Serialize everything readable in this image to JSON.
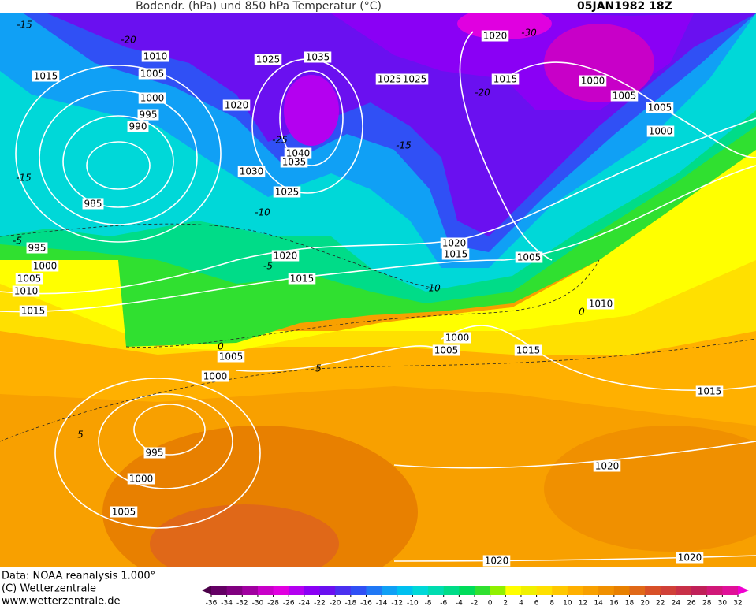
{
  "header": {
    "title": "Bodendr. (hPa) und 850 hPa Temperatur (°C)",
    "date": "05JAN1982 18Z"
  },
  "isobar_labels": [
    1010,
    1005,
    1015,
    1000,
    995,
    990,
    1025,
    1035,
    1020,
    1025,
    1025,
    1020,
    1015,
    1000,
    1005,
    1005,
    1000,
    1040,
    1035,
    1030,
    1025,
    985,
    995,
    1000,
    1005,
    1010,
    1015,
    1020,
    1015,
    1020,
    1015,
    1005,
    1010,
    1000,
    1005,
    1015,
    1005,
    1000,
    1015,
    995,
    1000,
    1005,
    1020,
    1020,
    1020
  ],
  "temperature_labels": [
    -15,
    -20,
    -30,
    -20,
    -25,
    -15,
    -10,
    -15,
    -5,
    -5,
    -10,
    0,
    0,
    5,
    5
  ],
  "footer": [
    "Data: NOAA reanalysis 1.000°",
    "(C) Wetterzentrale",
    "www.wetterzentrale.de"
  ],
  "legend": {
    "ticks": [
      -36,
      -34,
      -32,
      -30,
      -28,
      -26,
      -24,
      -22,
      -20,
      -18,
      -16,
      -14,
      -12,
      -10,
      -8,
      -6,
      -4,
      -2,
      0,
      2,
      4,
      6,
      8,
      10,
      12,
      14,
      16,
      18,
      20,
      22,
      24,
      26,
      28,
      30,
      32
    ],
    "colors": [
      "#4b0049",
      "#640064",
      "#80007f",
      "#a000a0",
      "#c800c8",
      "#e000e0",
      "#b400f0",
      "#8a00f5",
      "#6a10f0",
      "#4a30f0",
      "#3050f5",
      "#2078f5",
      "#10a0f5",
      "#00c0f0",
      "#00d8d8",
      "#00dcb0",
      "#00dc88",
      "#00dc5a",
      "#30e030",
      "#90f000",
      "#ffff00",
      "#f0f000",
      "#ffe000",
      "#ffc800",
      "#ffb000",
      "#f8a000",
      "#f09000",
      "#e88000",
      "#e06818",
      "#d85028",
      "#d04038",
      "#c83048",
      "#c02058",
      "#d01878",
      "#e01098",
      "#f000d0"
    ]
  }
}
